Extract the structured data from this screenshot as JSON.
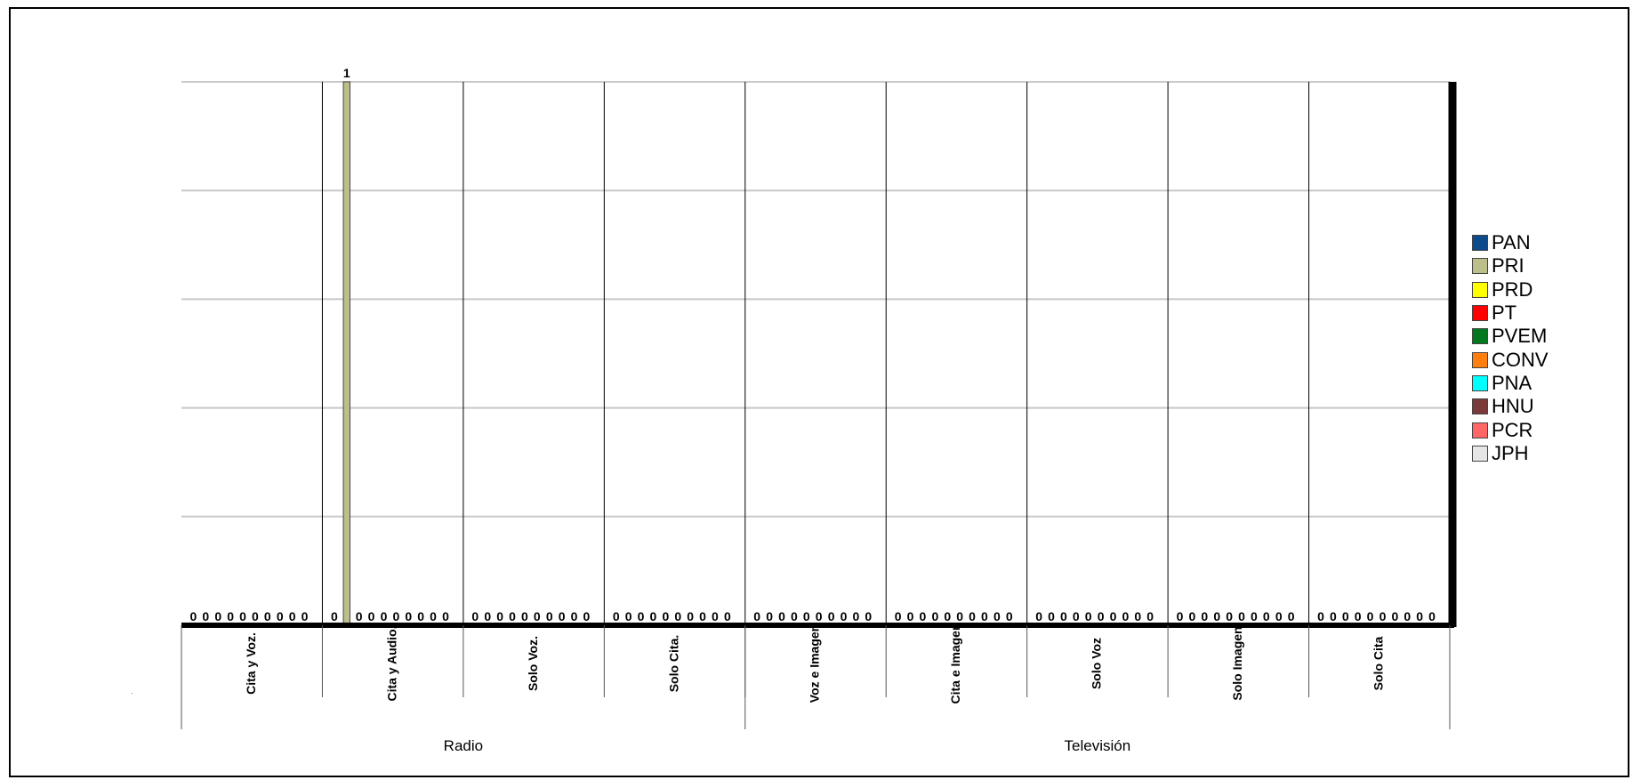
{
  "chart_data": {
    "type": "bar",
    "groups": [
      {
        "name": "Radio",
        "categories": [
          "Cita y Voz.",
          "Cita y Audio.",
          "Solo Voz.",
          "Solo Cita."
        ]
      },
      {
        "name": "Televisión",
        "categories": [
          "Voz e Imagen",
          "Cita e Imagen",
          "Solo Voz",
          "Solo Imagen",
          "Solo Cita"
        ]
      }
    ],
    "categories": [
      "Cita y Voz.",
      "Cita y Audio.",
      "Solo Voz.",
      "Solo Cita.",
      "Voz e Imagen",
      "Cita e Imagen",
      "Solo Voz",
      "Solo Imagen",
      "Solo Cita"
    ],
    "series": [
      {
        "name": "PAN",
        "color": "#0b4a8b",
        "values": [
          0,
          0,
          0,
          0,
          0,
          0,
          0,
          0,
          0
        ]
      },
      {
        "name": "PRI",
        "color": "#bdbf8a",
        "values": [
          0,
          1,
          0,
          0,
          0,
          0,
          0,
          0,
          0
        ]
      },
      {
        "name": "PRD",
        "color": "#ffff00",
        "values": [
          0,
          0,
          0,
          0,
          0,
          0,
          0,
          0,
          0
        ]
      },
      {
        "name": "PT",
        "color": "#ff0000",
        "values": [
          0,
          0,
          0,
          0,
          0,
          0,
          0,
          0,
          0
        ]
      },
      {
        "name": "PVEM",
        "color": "#00781e",
        "values": [
          0,
          0,
          0,
          0,
          0,
          0,
          0,
          0,
          0
        ]
      },
      {
        "name": "CONV",
        "color": "#ff7f0e",
        "values": [
          0,
          0,
          0,
          0,
          0,
          0,
          0,
          0,
          0
        ]
      },
      {
        "name": "PNA",
        "color": "#00ffff",
        "values": [
          0,
          0,
          0,
          0,
          0,
          0,
          0,
          0,
          0
        ]
      },
      {
        "name": "HNU",
        "color": "#7b3a3a",
        "values": [
          0,
          0,
          0,
          0,
          0,
          0,
          0,
          0,
          0
        ]
      },
      {
        "name": "PCR",
        "color": "#ff6666",
        "values": [
          0,
          0,
          0,
          0,
          0,
          0,
          0,
          0,
          0
        ]
      },
      {
        "name": "JPH",
        "color": "#e6e6e6",
        "values": [
          0,
          0,
          0,
          0,
          0,
          0,
          0,
          0,
          0
        ]
      }
    ],
    "ylim": [
      0,
      1
    ],
    "grid": true,
    "data_labels": true,
    "legend_position": "right"
  }
}
